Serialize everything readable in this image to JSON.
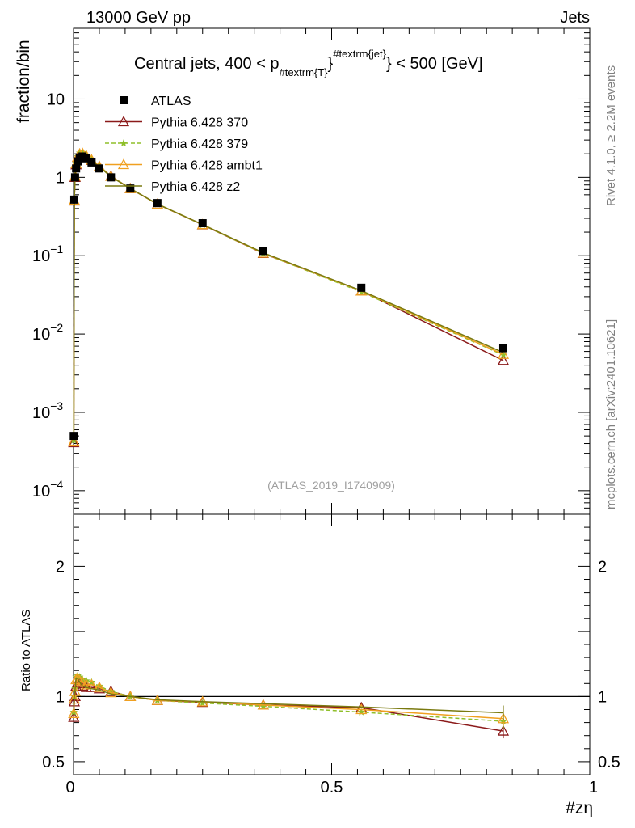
{
  "header": {
    "energy_label": "13000 GeV pp",
    "category_label": "Jets",
    "side_label_top": "Rivet 4.1.0, ≥ 2.2M events",
    "side_label_bottom": "mcplots.cern.ch [arXiv:2401.10621]",
    "analysis_id": "(ATLAS_2019_I1740909)"
  },
  "chart_data": [
    {
      "type": "line",
      "title": "Central jets, 400 < p_{#textrm{T}}^{#textrm{jet}} < 500 [GeV]",
      "title_parts": {
        "pre": "Central jets, 400 < p",
        "sub": "#textrm{T}",
        "close": "}",
        "sup": "#textrm{jet}",
        "post": "} < 500 [GeV]"
      },
      "xlabel": "#zη",
      "ylabel": "fraction/bin",
      "yscale": "log",
      "xlim": [
        0,
        1
      ],
      "ylim": [
        5e-05,
        80
      ],
      "ytick_labels": [
        {
          "value": 10,
          "mant": "10",
          "exp": ""
        },
        {
          "value": 1,
          "mant": "1",
          "exp": ""
        },
        {
          "value": 0.1,
          "mant": "10",
          "exp": "−1"
        },
        {
          "value": 0.01,
          "mant": "10",
          "exp": "−2"
        },
        {
          "value": 0.001,
          "mant": "10",
          "exp": "−3"
        },
        {
          "value": 0.0001,
          "mant": "10",
          "exp": "−4"
        }
      ],
      "legend_position": "top-left",
      "x": [
        0.0005,
        0.0015,
        0.003,
        0.005,
        0.008,
        0.012,
        0.0175,
        0.025,
        0.035,
        0.05,
        0.0725,
        0.11,
        0.1625,
        0.25,
        0.3675,
        0.5575,
        0.8325
      ],
      "series": [
        {
          "name": "ATLAS",
          "color": "#000000",
          "marker": "square",
          "values": [
            0.0005,
            0.52,
            1.0,
            1.3,
            1.6,
            1.8,
            1.85,
            1.75,
            1.55,
            1.3,
            1.0,
            0.72,
            0.47,
            0.26,
            0.115,
            0.039,
            0.0066
          ]
        },
        {
          "name": "Pythia 6.428 370",
          "color": "#8b1a1a",
          "marker": "triangle-open",
          "dash": "",
          "values": [
            0.00041,
            0.5,
            1.0,
            1.45,
            1.8,
            1.95,
            1.97,
            1.85,
            1.65,
            1.38,
            1.04,
            0.72,
            0.455,
            0.248,
            0.107,
            0.0355,
            0.0046
          ]
        },
        {
          "name": "Pythia 6.428 379",
          "color": "#8fbf2a",
          "marker": "star",
          "dash": "5,3",
          "values": [
            0.00044,
            0.52,
            1.06,
            1.52,
            1.85,
            2.05,
            2.08,
            1.93,
            1.71,
            1.4,
            1.04,
            0.72,
            0.455,
            0.248,
            0.107,
            0.0345,
            0.0054
          ]
        },
        {
          "name": "Pythia 6.428 ambt1",
          "color": "#f0a020",
          "marker": "triangle-open",
          "dash": "",
          "values": [
            0.00043,
            0.51,
            1.04,
            1.5,
            1.82,
            2.0,
            2.02,
            1.88,
            1.67,
            1.38,
            1.03,
            0.72,
            0.455,
            0.25,
            0.108,
            0.0355,
            0.0055
          ]
        },
        {
          "name": "Pythia 6.428 z2",
          "color": "#7a7a10",
          "marker": "none",
          "dash": "",
          "values": [
            0.00045,
            0.52,
            1.05,
            1.5,
            1.82,
            1.98,
            1.99,
            1.85,
            1.64,
            1.36,
            1.02,
            0.72,
            0.458,
            0.25,
            0.109,
            0.0358,
            0.0058
          ]
        }
      ]
    },
    {
      "type": "line",
      "ylabel": "Ratio to ATLAS",
      "xlabel": "#zη",
      "xlim": [
        0,
        1
      ],
      "ylim": [
        0.4,
        2.4
      ],
      "ytick_labels": [
        "2",
        "1",
        "0.5"
      ],
      "ytick_values": [
        2,
        1,
        0.5
      ],
      "xtick_labels": [
        "0",
        "0.5",
        "1"
      ],
      "xtick_values": [
        0,
        0.5,
        1
      ],
      "reference_line": 1,
      "series": [
        {
          "name": "Pythia 6.428 370",
          "color": "#8b1a1a",
          "marker": "triangle-open",
          "dash": "",
          "values": [
            0.84,
            0.96,
            1.0,
            1.08,
            1.11,
            1.1,
            1.08,
            1.07,
            1.07,
            1.06,
            1.04,
            1.0,
            0.97,
            0.955,
            0.935,
            0.915,
            0.735
          ]
        },
        {
          "name": "Pythia 6.428 379",
          "color": "#8fbf2a",
          "marker": "star",
          "dash": "5,3",
          "values": [
            0.88,
            1.0,
            1.06,
            1.15,
            1.16,
            1.15,
            1.13,
            1.12,
            1.11,
            1.08,
            1.04,
            1.0,
            0.97,
            0.95,
            0.925,
            0.88,
            0.81
          ]
        },
        {
          "name": "Pythia 6.428 ambt1",
          "color": "#f0a020",
          "marker": "triangle-open",
          "dash": "",
          "values": [
            0.87,
            0.98,
            1.04,
            1.13,
            1.14,
            1.12,
            1.11,
            1.09,
            1.09,
            1.07,
            1.03,
            1.0,
            0.97,
            0.96,
            0.935,
            0.9,
            0.83
          ]
        },
        {
          "name": "Pythia 6.428 z2",
          "color": "#7a7a10",
          "marker": "none",
          "dash": "",
          "values": [
            0.9,
            1.0,
            1.05,
            1.14,
            1.14,
            1.11,
            1.08,
            1.07,
            1.06,
            1.05,
            1.02,
            1.0,
            0.975,
            0.96,
            0.945,
            0.92,
            0.875
          ]
        }
      ]
    }
  ]
}
